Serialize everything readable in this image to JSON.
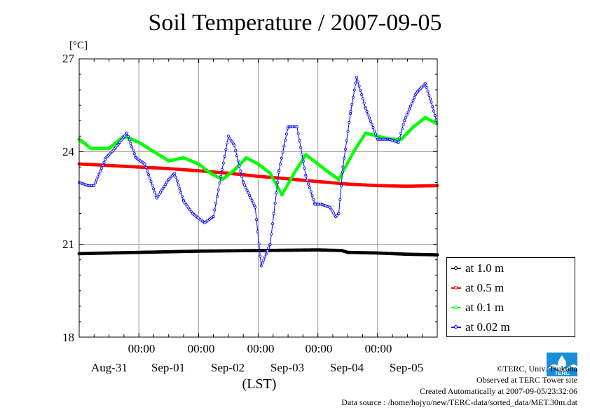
{
  "chart_data": {
    "type": "line",
    "title": "Soil Temperature / 2007-09-05",
    "ylabel": "[°C]",
    "xlabel": "(LST)",
    "ylim": [
      18,
      27
    ],
    "xlim": [
      0,
      6
    ],
    "yticks": [
      "27",
      "24",
      "21",
      "18"
    ],
    "x_time_labels": [
      "00:00",
      "00:00",
      "00:00",
      "00:00",
      "00:00"
    ],
    "x_date_labels": [
      "Aug-31",
      "Sep-01",
      "Sep-02",
      "Sep-03",
      "Sep-04",
      "Sep-05"
    ],
    "grid": true,
    "legend_position": "right-bottom",
    "x_unit": "days since 2007-08-30 00:00 LST (axis start)",
    "series": [
      {
        "name": "at 1.0 m",
        "color": "#000000",
        "x": [
          0,
          0.5,
          1,
          1.5,
          2,
          2.5,
          3,
          3.5,
          4,
          4.4,
          4.5,
          5,
          5.5,
          6
        ],
        "y": [
          20.7,
          20.72,
          20.74,
          20.76,
          20.78,
          20.79,
          20.8,
          20.81,
          20.82,
          20.8,
          20.74,
          20.72,
          20.68,
          20.66
        ]
      },
      {
        "name": "at 0.5 m",
        "color": "#ff0000",
        "x": [
          0,
          0.5,
          1,
          1.5,
          2,
          2.5,
          3,
          3.5,
          4,
          4.5,
          5,
          5.5,
          6
        ],
        "y": [
          23.6,
          23.55,
          23.5,
          23.45,
          23.38,
          23.3,
          23.2,
          23.12,
          23.03,
          22.95,
          22.9,
          22.88,
          22.9
        ]
      },
      {
        "name": "at 0.1 m",
        "color": "#00ff00",
        "x": [
          0,
          0.2,
          0.5,
          0.75,
          1,
          1.25,
          1.5,
          1.75,
          2,
          2.2,
          2.4,
          2.6,
          2.8,
          3,
          3.2,
          3.4,
          3.6,
          3.8,
          4,
          4.2,
          4.35,
          4.6,
          4.8,
          5,
          5.2,
          5.4,
          5.6,
          5.8,
          6
        ],
        "y": [
          24.4,
          24.1,
          24.1,
          24.5,
          24.3,
          24.0,
          23.7,
          23.8,
          23.6,
          23.3,
          23.1,
          23.4,
          23.8,
          23.6,
          23.3,
          22.6,
          23.3,
          23.9,
          23.6,
          23.3,
          23.1,
          24.0,
          24.6,
          24.5,
          24.4,
          24.4,
          24.8,
          25.1,
          24.9
        ]
      },
      {
        "name": "at 0.02 m",
        "color": "#0000ff",
        "x": [
          0,
          0.15,
          0.25,
          0.45,
          0.55,
          0.68,
          0.8,
          0.95,
          1.1,
          1.3,
          1.5,
          1.6,
          1.75,
          1.9,
          2.1,
          2.25,
          2.5,
          2.6,
          2.75,
          2.95,
          3.05,
          3.2,
          3.35,
          3.5,
          3.65,
          3.8,
          3.95,
          4.05,
          4.2,
          4.3,
          4.35,
          4.42,
          4.55,
          4.65,
          4.8,
          5.0,
          5.2,
          5.35,
          5.45,
          5.65,
          5.7,
          5.8,
          5.9,
          6
        ],
        "y": [
          23.0,
          22.9,
          22.9,
          23.8,
          24.0,
          24.3,
          24.6,
          23.8,
          23.6,
          22.5,
          23.1,
          23.3,
          22.4,
          22.0,
          21.7,
          21.9,
          24.5,
          24.2,
          23.0,
          22.2,
          20.3,
          21.0,
          23.4,
          24.8,
          24.8,
          23.2,
          22.3,
          22.3,
          22.2,
          21.9,
          22.0,
          23.5,
          25.3,
          26.4,
          25.4,
          24.4,
          24.4,
          24.3,
          25.0,
          25.9,
          26.0,
          26.2,
          25.6,
          24.9
        ]
      }
    ]
  },
  "credits": {
    "line1": "©TERC, Univ. Tsukuba",
    "line2": "Observed at TERC Tower site",
    "line3": "Created Automatically at 2007-09-05/23:32:06",
    "line4": "Data source : /home/hojyo/new/TERC-data/sorted_data/MET.30m.dat"
  },
  "logo": {
    "text": "TERC",
    "color": "#1a8fd8"
  }
}
